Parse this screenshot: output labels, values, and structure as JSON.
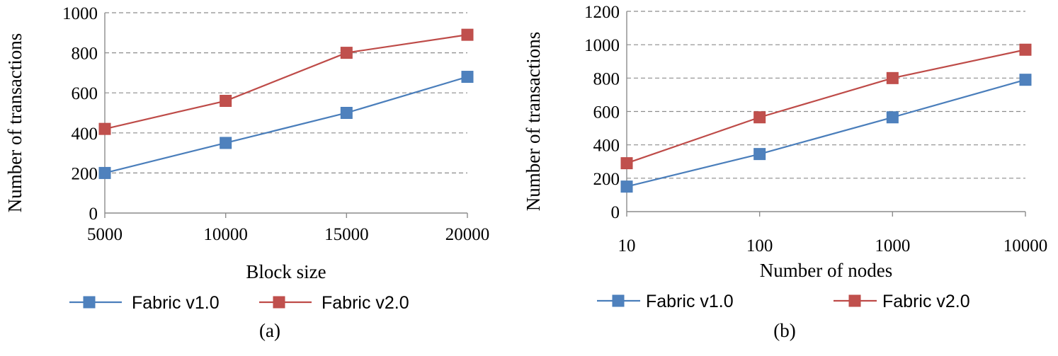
{
  "chart_data": [
    {
      "type": "line",
      "caption": "(a)",
      "xlabel": "Block size",
      "ylabel": "Number of transactions",
      "categories": [
        "5000",
        "10000",
        "15000",
        "20000"
      ],
      "ylim": [
        0,
        1000
      ],
      "yticks": [
        "0",
        "200",
        "400",
        "600",
        "800",
        "1000"
      ],
      "grid": true,
      "legend_position": "bottom",
      "series": [
        {
          "name": "Fabric v1.0",
          "color": "#4a7ebb",
          "marker_color": "#4f81bd",
          "values": [
            200,
            350,
            500,
            680
          ]
        },
        {
          "name": "Fabric v2.0",
          "color": "#be4b48",
          "marker_color": "#c0504d",
          "values": [
            420,
            560,
            800,
            890
          ]
        }
      ]
    },
    {
      "type": "line",
      "caption": "(b)",
      "xlabel": "Number of nodes",
      "ylabel": "Number of transactions",
      "categories": [
        "10",
        "100",
        "1000",
        "10000"
      ],
      "ylim": [
        0,
        1200
      ],
      "yticks": [
        "0",
        "200",
        "400",
        "600",
        "800",
        "1000",
        "1200"
      ],
      "grid": true,
      "legend_position": "bottom",
      "series": [
        {
          "name": "Fabric v1.0",
          "color": "#4a7ebb",
          "marker_color": "#4f81bd",
          "values": [
            150,
            345,
            565,
            790
          ]
        },
        {
          "name": "Fabric v2.0",
          "color": "#be4b48",
          "marker_color": "#c0504d",
          "values": [
            290,
            565,
            800,
            970
          ]
        }
      ]
    }
  ]
}
